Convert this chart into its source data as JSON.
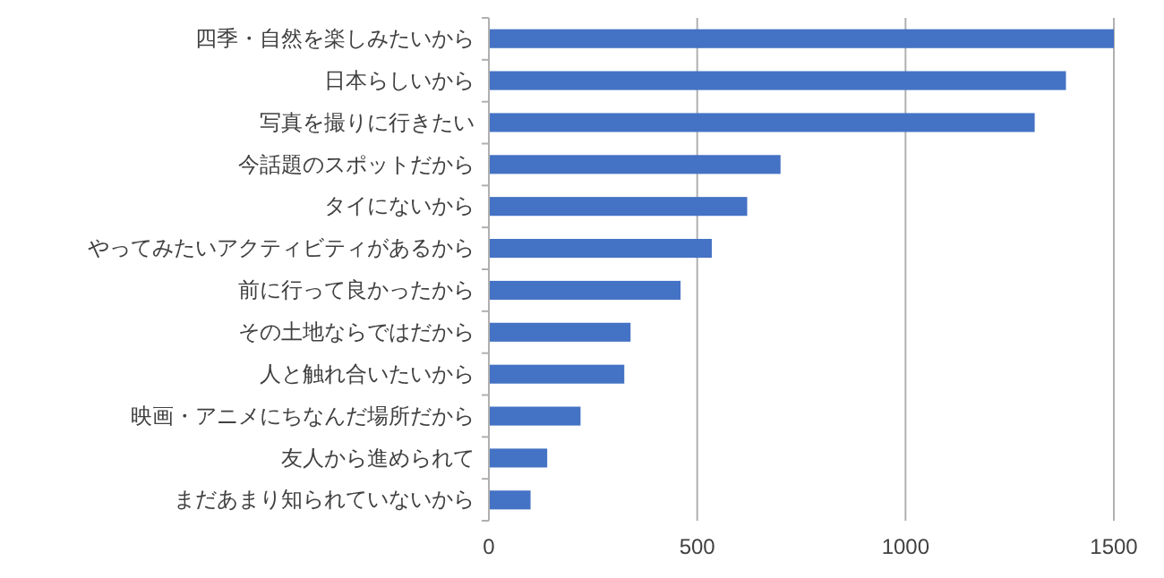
{
  "chart_data": {
    "type": "bar",
    "orientation": "horizontal",
    "categories": [
      "四季・自然を楽しみたいから",
      "日本らしいから",
      "写真を撮りに行きたい",
      "今話題のスポットだから",
      "タイにないから",
      "やってみたいアクティビティがあるから",
      "前に行って良かったから",
      "その土地ならではだから",
      "人と触れ合いたいから",
      "映画・アニメにちなんだ場所だから",
      "友人から進められて",
      "まだあまり知られていないから"
    ],
    "values": [
      1500,
      1385,
      1310,
      700,
      620,
      535,
      460,
      340,
      325,
      220,
      140,
      100
    ],
    "color": "#4472c4",
    "xlim": [
      0,
      1500
    ],
    "xticks": [
      0,
      500,
      1000,
      1500
    ],
    "grid": "x"
  }
}
